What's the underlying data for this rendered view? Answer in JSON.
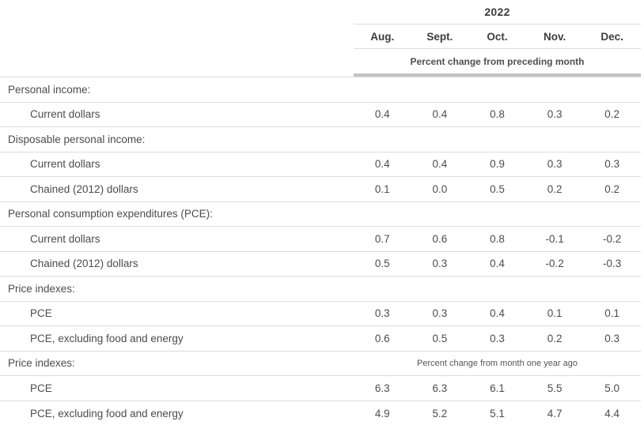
{
  "chart_data": {
    "type": "table",
    "title": "2022",
    "columns": [
      "Aug.",
      "Sept.",
      "Oct.",
      "Nov.",
      "Dec."
    ],
    "unit_note_monthly": "Percent change from preceding month",
    "unit_note_yearly": "Percent change from month one year ago",
    "rows": [
      {
        "type": "section",
        "label": "Personal income:"
      },
      {
        "type": "data",
        "label": "Current dollars",
        "values": [
          "0.4",
          "0.4",
          "0.8",
          "0.3",
          "0.2"
        ]
      },
      {
        "type": "section",
        "label": "Disposable personal income:"
      },
      {
        "type": "data",
        "label": "Current dollars",
        "values": [
          "0.4",
          "0.4",
          "0.9",
          "0.3",
          "0.3"
        ]
      },
      {
        "type": "data",
        "label": "Chained (2012) dollars",
        "values": [
          "0.1",
          "0.0",
          "0.5",
          "0.2",
          "0.2"
        ]
      },
      {
        "type": "section",
        "label": "Personal consumption expenditures (PCE):"
      },
      {
        "type": "data",
        "label": "Current dollars",
        "values": [
          "0.7",
          "0.6",
          "0.8",
          "-0.1",
          "-0.2"
        ]
      },
      {
        "type": "data",
        "label": "Chained (2012) dollars",
        "values": [
          "0.5",
          "0.3",
          "0.4",
          "-0.2",
          "-0.3"
        ]
      },
      {
        "type": "section",
        "label": "Price indexes:"
      },
      {
        "type": "data",
        "label": "PCE",
        "values": [
          "0.3",
          "0.3",
          "0.4",
          "0.1",
          "0.1"
        ]
      },
      {
        "type": "data",
        "label": "PCE, excluding food and energy",
        "values": [
          "0.6",
          "0.5",
          "0.3",
          "0.2",
          "0.3"
        ]
      },
      {
        "type": "section-note",
        "label": "Price indexes:"
      },
      {
        "type": "data",
        "label": "PCE",
        "values": [
          "6.3",
          "6.3",
          "6.1",
          "5.5",
          "5.0"
        ]
      },
      {
        "type": "data",
        "label": "PCE, excluding food and energy",
        "values": [
          "4.9",
          "5.2",
          "5.1",
          "4.7",
          "4.4"
        ]
      }
    ]
  },
  "colors": {
    "border": "#dcdcdc",
    "thick_bar": "#c3c3c3",
    "text": "#4c4c4c",
    "header_text": "#3d3d3d"
  }
}
